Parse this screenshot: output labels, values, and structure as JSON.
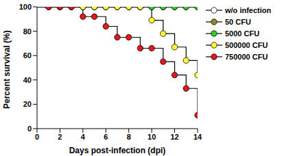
{
  "chart_data": {
    "type": "line",
    "x_label": "Days post-infection (dpi)",
    "y_label": "Percent survival (%)",
    "x": [
      0,
      1,
      2,
      3,
      4,
      5,
      6,
      7,
      8,
      9,
      10,
      11,
      12,
      13,
      14
    ],
    "xlim": [
      0,
      14
    ],
    "xticks": [
      0,
      2,
      4,
      6,
      8,
      10,
      12,
      14
    ],
    "ylim": [
      0,
      100
    ],
    "yticks": [
      0,
      20,
      40,
      60,
      80,
      100
    ],
    "grid": false,
    "legend": "right",
    "line_style": "step",
    "marker": "circle",
    "series": [
      {
        "name": "w/o infection",
        "color": "#ffffff",
        "values": [
          100,
          100,
          100,
          100,
          100,
          100,
          100,
          100,
          100,
          100,
          100,
          100,
          100,
          100,
          100
        ]
      },
      {
        "name": "50 CFU",
        "color": "#8c8a2a",
        "values": [
          100,
          100,
          100,
          100,
          100,
          100,
          100,
          100,
          100,
          100,
          100,
          100,
          100,
          100,
          100
        ]
      },
      {
        "name": "5000 CFU",
        "color": "#33cc33",
        "values": [
          100,
          100,
          100,
          100,
          100,
          100,
          100,
          100,
          100,
          100,
          100,
          100,
          100,
          100,
          100
        ]
      },
      {
        "name": "500000 CFU",
        "color": "#ffff33",
        "values": [
          100,
          100,
          100,
          100,
          100,
          100,
          100,
          100,
          100,
          100,
          89,
          78,
          67,
          56,
          44
        ]
      },
      {
        "name": "750000 CFU",
        "color": "#e3181c",
        "values": [
          100,
          100,
          100,
          100,
          92,
          92,
          84,
          75,
          75,
          66,
          66,
          55,
          44,
          33,
          11
        ]
      }
    ]
  }
}
